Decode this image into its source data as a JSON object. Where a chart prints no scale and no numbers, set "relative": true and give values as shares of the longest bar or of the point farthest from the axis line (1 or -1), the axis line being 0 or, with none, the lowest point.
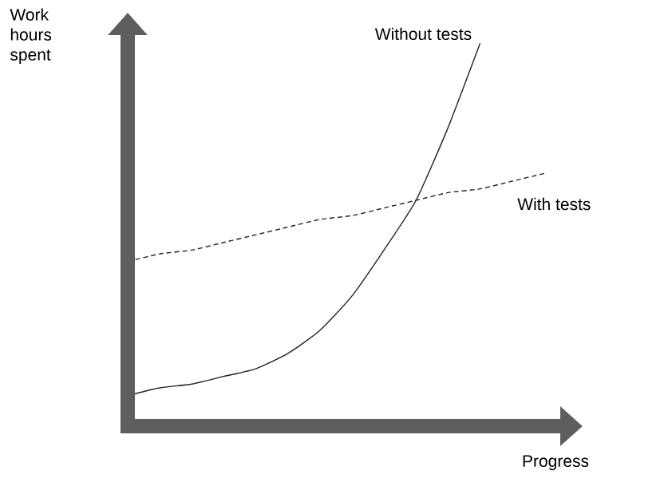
{
  "chart_data": {
    "type": "line",
    "relative": true,
    "xlabel": "Progress",
    "ylabel": "Work hours spent",
    "legend": false,
    "tick_labels": false,
    "marker": "none",
    "categories": [
      null,
      null,
      null,
      null,
      null,
      null,
      null,
      null,
      null,
      null,
      null,
      null,
      null,
      null
    ],
    "series": [
      {
        "name": "Without tests",
        "color": "#222222",
        "line_style": "solid",
        "values": [
          0.08,
          0.1,
          0.11,
          0.13,
          0.15,
          0.19,
          0.25,
          0.34,
          0.46,
          0.59,
          0.78,
          1,
          null,
          null
        ]
      },
      {
        "name": "With tests",
        "color": "#222222",
        "line_style": "dashed",
        "values": [
          0.43,
          0.45,
          0.46,
          0.48,
          0.5,
          0.52,
          0.54,
          0.55,
          0.57,
          0.59,
          0.61,
          0.62,
          0.64,
          0.66
        ]
      }
    ]
  }
}
